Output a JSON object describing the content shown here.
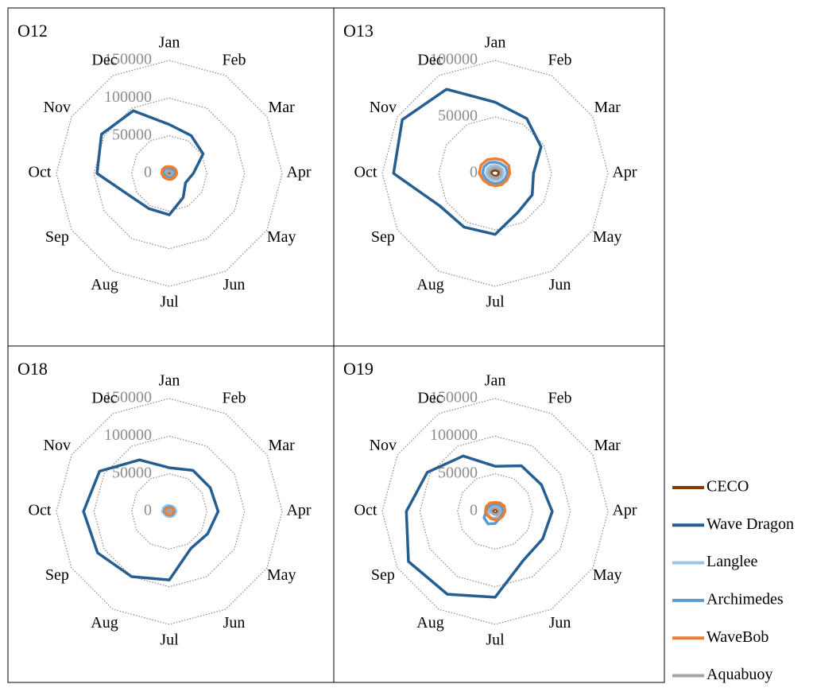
{
  "chart_data": [
    {
      "type": "radar",
      "title": "O12",
      "categories": [
        "Jan",
        "Feb",
        "Mar",
        "Apr",
        "May",
        "Jun",
        "Jul",
        "Aug",
        "Sep",
        "Oct",
        "Nov",
        "Dec"
      ],
      "rlim": [
        0,
        150000
      ],
      "rticks": [
        0,
        50000,
        100000,
        150000
      ],
      "series": [
        {
          "name": "CECO",
          "color": "#843c0c",
          "values": [
            2000,
            2000,
            2500,
            2500,
            2000,
            2000,
            1500,
            1500,
            2000,
            2500,
            2500,
            2000
          ]
        },
        {
          "name": "Wave Dragon",
          "color": "#255e91",
          "values": [
            65000,
            58000,
            52000,
            32000,
            25000,
            37000,
            55000,
            54000,
            60000,
            96000,
            104000,
            96000
          ]
        },
        {
          "name": "Langlee",
          "color": "#9dc3e6",
          "values": [
            5000,
            5000,
            5500,
            6000,
            5000,
            4500,
            4000,
            4000,
            4500,
            5500,
            6000,
            5500
          ]
        },
        {
          "name": "Archimedes",
          "color": "#5b9bd5",
          "values": [
            7000,
            7000,
            8000,
            8000,
            7000,
            6500,
            6000,
            6000,
            6500,
            8000,
            8500,
            8000
          ]
        },
        {
          "name": "WaveBob",
          "color": "#ed7d31",
          "values": [
            9000,
            9500,
            10000,
            10000,
            9000,
            8500,
            8000,
            8000,
            9000,
            10000,
            10500,
            10000
          ]
        },
        {
          "name": "Aquabuoy",
          "color": "#a5a5a5",
          "values": [
            3000,
            3000,
            3500,
            3500,
            3000,
            3000,
            2500,
            2500,
            3000,
            3500,
            3500,
            3000
          ]
        }
      ]
    },
    {
      "type": "radar",
      "title": "O13",
      "categories": [
        "Jan",
        "Feb",
        "Mar",
        "Apr",
        "May",
        "Jun",
        "Jul",
        "Aug",
        "Sep",
        "Oct",
        "Nov",
        "Dec"
      ],
      "rlim": [
        0,
        100000
      ],
      "rticks": [
        0,
        50000,
        100000
      ],
      "series": [
        {
          "name": "CECO",
          "color": "#843c0c",
          "values": [
            3000,
            3000,
            3500,
            3500,
            3000,
            3000,
            2500,
            2500,
            3000,
            3500,
            3500,
            3000
          ]
        },
        {
          "name": "Wave Dragon",
          "color": "#255e91",
          "values": [
            63000,
            56000,
            47000,
            34000,
            38000,
            40000,
            54000,
            55000,
            57000,
            90000,
            95000,
            86000
          ]
        },
        {
          "name": "Langlee",
          "color": "#9dc3e6",
          "values": [
            7000,
            7000,
            7500,
            7500,
            7000,
            6500,
            6000,
            6000,
            6500,
            7500,
            8000,
            7500
          ]
        },
        {
          "name": "Archimedes",
          "color": "#5b9bd5",
          "values": [
            10000,
            10000,
            11000,
            11000,
            10000,
            9500,
            9000,
            9000,
            9500,
            11000,
            11500,
            11000
          ]
        },
        {
          "name": "WaveBob",
          "color": "#ed7d31",
          "values": [
            13000,
            13500,
            14000,
            13000,
            12000,
            11500,
            11000,
            11000,
            12000,
            14000,
            14500,
            14000
          ]
        },
        {
          "name": "Aquabuoy",
          "color": "#a5a5a5",
          "values": [
            5000,
            5000,
            5500,
            5500,
            5000,
            4500,
            4000,
            4000,
            4500,
            5500,
            5500,
            5000
          ]
        }
      ]
    },
    {
      "type": "radar",
      "title": "O18",
      "categories": [
        "Jan",
        "Feb",
        "Mar",
        "Apr",
        "May",
        "Jun",
        "Jul",
        "Aug",
        "Sep",
        "Oct",
        "Nov",
        "Dec"
      ],
      "rlim": [
        0,
        150000
      ],
      "rticks": [
        0,
        50000,
        100000,
        150000
      ],
      "series": [
        {
          "name": "CECO",
          "color": "#843c0c",
          "values": [
            4000,
            4000,
            4500,
            4500,
            4000,
            4000,
            3500,
            3500,
            4000,
            4500,
            4500,
            4000
          ]
        },
        {
          "name": "Wave Dragon",
          "color": "#255e91",
          "values": [
            58000,
            63000,
            63000,
            65000,
            59000,
            57000,
            91000,
            100000,
            110000,
            114000,
            107000,
            79000
          ]
        },
        {
          "name": "Langlee",
          "color": "#9dc3e6",
          "values": [
            8000,
            8000,
            8500,
            9000,
            8000,
            7500,
            7000,
            7000,
            7500,
            9000,
            9000,
            8500
          ]
        },
        {
          "name": "Archimedes",
          "color": "#5b9bd5",
          "values": [
            6000,
            6000,
            6500,
            6500,
            6000,
            5500,
            5000,
            5000,
            5500,
            6500,
            6500,
            6000
          ]
        },
        {
          "name": "WaveBob",
          "color": "#ed7d31",
          "values": [
            5000,
            5000,
            5500,
            5500,
            5000,
            4500,
            4500,
            4500,
            5000,
            5500,
            5500,
            5000
          ]
        },
        {
          "name": "Aquabuoy",
          "color": "#a5a5a5",
          "values": [
            2000,
            2000,
            2500,
            2500,
            2000,
            2000,
            1500,
            1500,
            2000,
            2500,
            2500,
            2000
          ]
        }
      ]
    },
    {
      "type": "radar",
      "title": "O19",
      "categories": [
        "Jan",
        "Feb",
        "Mar",
        "Apr",
        "May",
        "Jun",
        "Jul",
        "Aug",
        "Sep",
        "Oct",
        "Nov",
        "Dec"
      ],
      "rlim": [
        0,
        150000
      ],
      "rticks": [
        0,
        50000,
        100000,
        150000
      ],
      "series": [
        {
          "name": "CECO",
          "color": "#843c0c",
          "values": [
            3000,
            3000,
            3500,
            3500,
            3000,
            3000,
            2500,
            2500,
            3000,
            3500,
            3500,
            3000
          ]
        },
        {
          "name": "Wave Dragon",
          "color": "#255e91",
          "values": [
            60000,
            70000,
            71000,
            76000,
            73000,
            75000,
            114000,
            127000,
            133000,
            118000,
            104000,
            85000
          ]
        },
        {
          "name": "Langlee",
          "color": "#9dc3e6",
          "values": [
            8000,
            8000,
            8500,
            8500,
            8000,
            8000,
            9000,
            10000,
            10000,
            8500,
            8500,
            8000
          ]
        },
        {
          "name": "Archimedes",
          "color": "#5b9bd5",
          "values": [
            10000,
            10000,
            11000,
            11000,
            10000,
            11000,
            16000,
            19000,
            17000,
            12000,
            11000,
            10000
          ]
        },
        {
          "name": "WaveBob",
          "color": "#ed7d31",
          "values": [
            12000,
            13000,
            14000,
            13000,
            12000,
            11500,
            11000,
            11000,
            11500,
            13000,
            13500,
            13000
          ]
        },
        {
          "name": "Aquabuoy",
          "color": "#a5a5a5",
          "values": [
            5000,
            5000,
            5500,
            5500,
            5000,
            4500,
            4000,
            4000,
            4500,
            5500,
            5500,
            5000
          ]
        }
      ]
    }
  ]
}
